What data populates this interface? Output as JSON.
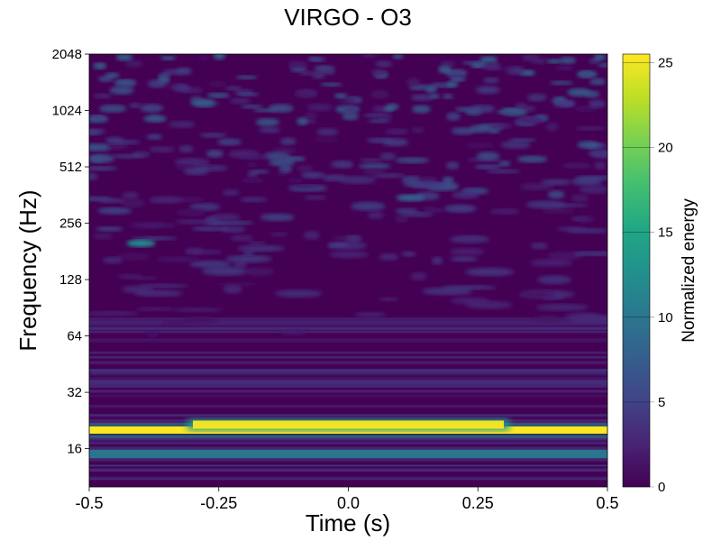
{
  "chart_data": {
    "type": "heatmap",
    "title": "VIRGO - O3",
    "xlabel": "Time (s)",
    "ylabel": "Frequency (Hz)",
    "xlim": [
      -0.5,
      0.5
    ],
    "ylim": [
      10,
      2048
    ],
    "yscale": "log2",
    "x_ticks": [
      -0.5,
      -0.25,
      0.0,
      0.25,
      0.5
    ],
    "x_tick_labels": [
      "-0.5",
      "-0.25",
      "0.0",
      "0.25",
      "0.5"
    ],
    "y_ticks": [
      16,
      32,
      64,
      128,
      256,
      512,
      1024,
      2048
    ],
    "y_tick_labels": [
      "16",
      "32",
      "64",
      "128",
      "256",
      "512",
      "1024",
      "2048"
    ],
    "colormap": "viridis",
    "colorbar": {
      "label": "Normalized energy",
      "range": [
        0,
        25.5
      ],
      "ticks": [
        0,
        5,
        10,
        15,
        20,
        25
      ],
      "tick_labels": [
        "0",
        "5",
        "10",
        "15",
        "20",
        "25"
      ]
    },
    "features": [
      {
        "freq_hz": 20,
        "time_range": [
          -0.5,
          0.5
        ],
        "energy": 25.5
      },
      {
        "freq_hz": 21.5,
        "time_range": [
          -0.3,
          0.3
        ],
        "energy": 25
      },
      {
        "freq_hz": 15,
        "time_range": [
          -0.5,
          0.5
        ],
        "energy": 10
      },
      {
        "freq_hz": 200,
        "time": -0.4,
        "energy": 12
      },
      {
        "freq_hz": 350,
        "time": 0.12,
        "energy": 8
      }
    ],
    "grid": false
  }
}
